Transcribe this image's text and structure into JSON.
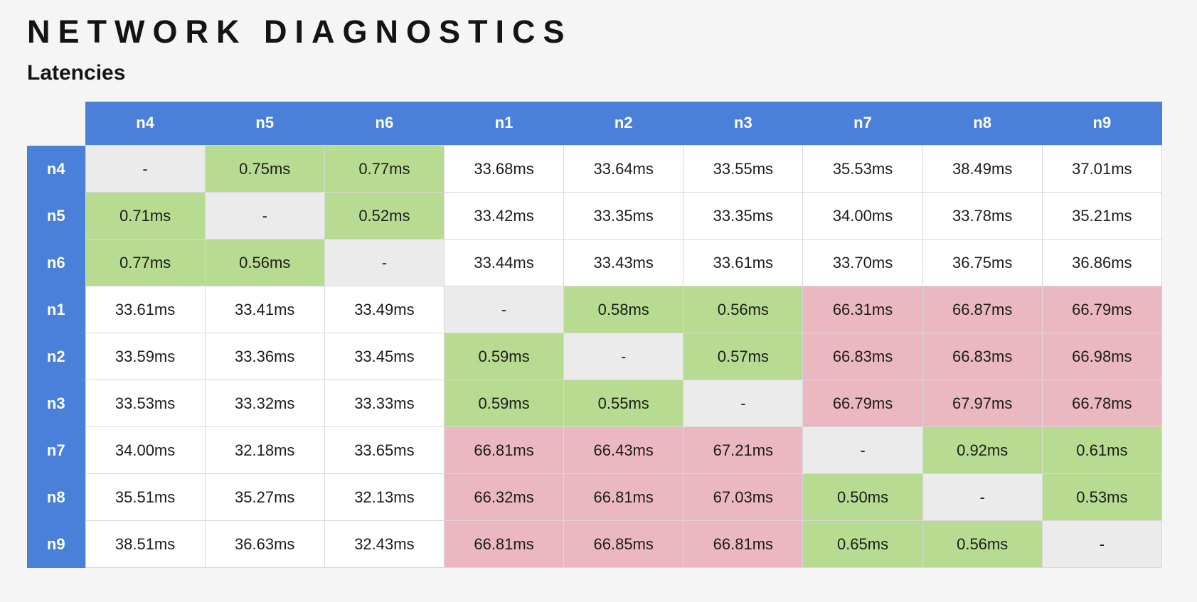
{
  "page": {
    "title": "NETWORK DIAGNOSTICS",
    "subtitle": "Latencies"
  },
  "colors": {
    "header_blue": "#4a80d9",
    "cell_fast_green": "#b7db90",
    "cell_slow_pink": "#ebb8c1",
    "cell_self_grey": "#ebebeb",
    "page_background": "#f5f5f5",
    "grid_border": "#d9d9d9"
  },
  "chart_data": {
    "type": "heatmap",
    "title": "Latencies",
    "unit": "ms",
    "columns": [
      "n4",
      "n5",
      "n6",
      "n1",
      "n2",
      "n3",
      "n7",
      "n8",
      "n9"
    ],
    "rows": [
      {
        "label": "n4",
        "values": [
          "-",
          "0.75ms",
          "0.77ms",
          "33.68ms",
          "33.64ms",
          "33.55ms",
          "35.53ms",
          "38.49ms",
          "37.01ms"
        ]
      },
      {
        "label": "n5",
        "values": [
          "0.71ms",
          "-",
          "0.52ms",
          "33.42ms",
          "33.35ms",
          "33.35ms",
          "34.00ms",
          "33.78ms",
          "35.21ms"
        ]
      },
      {
        "label": "n6",
        "values": [
          "0.77ms",
          "0.56ms",
          "-",
          "33.44ms",
          "33.43ms",
          "33.61ms",
          "33.70ms",
          "36.75ms",
          "36.86ms"
        ]
      },
      {
        "label": "n1",
        "values": [
          "33.61ms",
          "33.41ms",
          "33.49ms",
          "-",
          "0.58ms",
          "0.56ms",
          "66.31ms",
          "66.87ms",
          "66.79ms"
        ]
      },
      {
        "label": "n2",
        "values": [
          "33.59ms",
          "33.36ms",
          "33.45ms",
          "0.59ms",
          "-",
          "0.57ms",
          "66.83ms",
          "66.83ms",
          "66.98ms"
        ]
      },
      {
        "label": "n3",
        "values": [
          "33.53ms",
          "33.32ms",
          "33.33ms",
          "0.59ms",
          "0.55ms",
          "-",
          "66.79ms",
          "67.97ms",
          "66.78ms"
        ]
      },
      {
        "label": "n7",
        "values": [
          "34.00ms",
          "32.18ms",
          "33.65ms",
          "66.81ms",
          "66.43ms",
          "67.21ms",
          "-",
          "0.92ms",
          "0.61ms"
        ]
      },
      {
        "label": "n8",
        "values": [
          "35.51ms",
          "35.27ms",
          "32.13ms",
          "66.32ms",
          "66.81ms",
          "67.03ms",
          "0.50ms",
          "-",
          "0.53ms"
        ]
      },
      {
        "label": "n9",
        "values": [
          "38.51ms",
          "36.63ms",
          "32.43ms",
          "66.81ms",
          "66.85ms",
          "66.81ms",
          "0.65ms",
          "0.56ms",
          "-"
        ]
      }
    ]
  }
}
